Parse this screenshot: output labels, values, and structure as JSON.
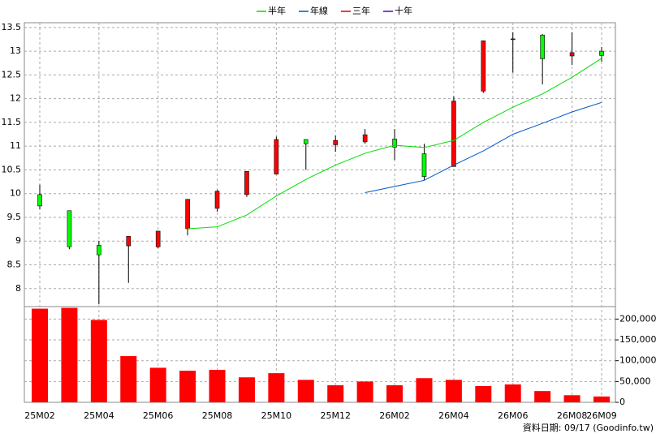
{
  "chart_data": {
    "type": "candlestick",
    "categories": [
      "25M02",
      null,
      "25M04",
      null,
      "25M06",
      null,
      "25M08",
      null,
      "25M10",
      null,
      "25M12",
      null,
      "26M02",
      null,
      "26M04",
      null,
      "26M06",
      null,
      "26M08",
      "26M09"
    ],
    "open": [
      9.98,
      9.64,
      8.91,
      8.9,
      8.88,
      9.26,
      9.69,
      9.98,
      10.41,
      11.14,
      11.03,
      11.09,
      11.15,
      10.84,
      10.57,
      12.16,
      13.25,
      13.34,
      12.9,
      13.0
    ],
    "high": [
      10.19,
      9.64,
      9.0,
      9.1,
      9.21,
      9.88,
      10.08,
      10.47,
      11.2,
      11.14,
      11.22,
      11.36,
      11.36,
      11.05,
      12.05,
      13.22,
      13.4,
      13.36,
      13.4,
      13.09
    ],
    "low": [
      9.67,
      8.83,
      7.67,
      8.12,
      8.85,
      9.12,
      9.62,
      9.93,
      10.41,
      10.5,
      10.88,
      11.05,
      10.71,
      10.29,
      10.57,
      12.12,
      12.55,
      12.3,
      12.71,
      12.78
    ],
    "close": [
      9.74,
      8.88,
      8.71,
      9.1,
      9.21,
      9.88,
      10.05,
      10.47,
      11.14,
      11.05,
      11.12,
      11.24,
      10.98,
      10.36,
      11.95,
      13.22,
      13.26,
      12.84,
      12.97,
      12.91
    ],
    "up_color": "#ff0000",
    "down_color": "#00ff00",
    "series": [
      {
        "name": "半年",
        "color": "#00dd00",
        "values": [
          null,
          null,
          null,
          null,
          null,
          9.26,
          9.3,
          9.55,
          9.95,
          10.3,
          10.6,
          10.85,
          11.02,
          10.97,
          11.12,
          11.5,
          11.82,
          12.1,
          12.45,
          12.85
        ]
      },
      {
        "name": "年線",
        "color": "#0055cc",
        "values": [
          null,
          null,
          null,
          null,
          null,
          null,
          null,
          null,
          null,
          null,
          null,
          10.02,
          10.15,
          10.28,
          10.6,
          10.9,
          11.25,
          11.48,
          11.72,
          11.92
        ]
      },
      {
        "name": "三年",
        "color": "#dd0000",
        "values": [
          null,
          null,
          null,
          null,
          null,
          null,
          null,
          null,
          null,
          null,
          null,
          null,
          null,
          null,
          null,
          null,
          null,
          null,
          null,
          null
        ]
      },
      {
        "name": "十年",
        "color": "#5500cc",
        "values": [
          null,
          null,
          null,
          null,
          null,
          null,
          null,
          null,
          null,
          null,
          null,
          null,
          null,
          null,
          null,
          null,
          null,
          null,
          null,
          null
        ]
      }
    ],
    "ylim": [
      7.62,
      13.6
    ],
    "yticks": [
      8,
      8.5,
      9,
      9.5,
      10,
      10.5,
      11,
      11.5,
      12,
      12.5,
      13,
      13.5
    ],
    "grid": true,
    "volume": {
      "color": "#ff0000",
      "values": [
        225000,
        227000,
        198000,
        111000,
        83000,
        76000,
        78000,
        60000,
        70000,
        54000,
        41000,
        50000,
        41000,
        58000,
        54000,
        39000,
        43000,
        27000,
        17000,
        14000
      ],
      "ylim": [
        0,
        230000
      ],
      "yticks": [
        0,
        {
          "value": 50000,
          "label": "50,000"
        },
        {
          "value": 100000,
          "label": "100,000"
        },
        {
          "value": 150000,
          "label": "150,000"
        },
        {
          "value": 200000,
          "label": "200,000"
        }
      ]
    },
    "annotation": "資料日期: 09/17 (Goodinfo.tw)"
  }
}
